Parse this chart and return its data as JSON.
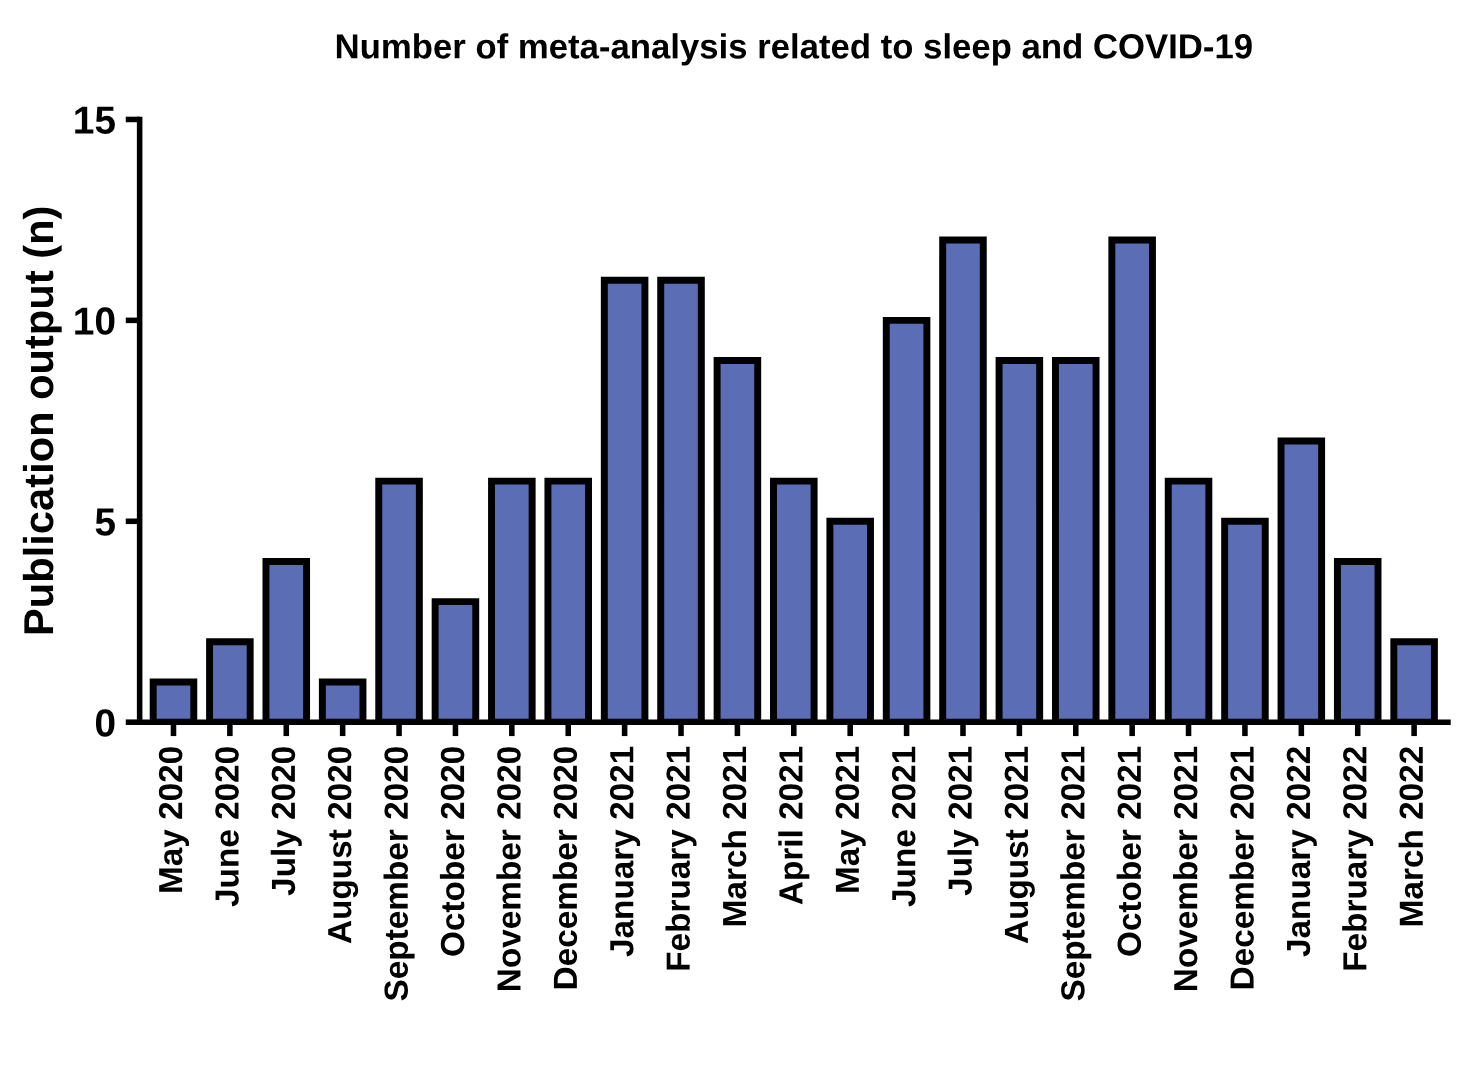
{
  "chart_data": {
    "type": "bar",
    "title": "Number of meta-analysis related to sleep and COVID-19",
    "ylabel": "Publication output (n)",
    "categories": [
      "May 2020",
      "June 2020",
      "July 2020",
      "August 2020",
      "September 2020",
      "October 2020",
      "November 2020",
      "December 2020",
      "January 2021",
      "February 2021",
      "March 2021",
      "April 2021",
      "May 2021",
      "June 2021",
      "July 2021",
      "August 2021",
      "September 2021",
      "October 2021",
      "November 2021",
      "December 2021",
      "January 2022",
      "February 2022",
      "March 2022"
    ],
    "values": [
      1,
      2,
      4,
      1,
      6,
      3,
      6,
      6,
      11,
      11,
      9,
      6,
      5,
      10,
      12,
      9,
      9,
      12,
      6,
      5,
      7,
      4,
      2
    ],
    "color": "#5b6db4",
    "ylim": [
      0,
      15
    ],
    "yticks": [
      0,
      5,
      10,
      15
    ],
    "grid": false
  }
}
